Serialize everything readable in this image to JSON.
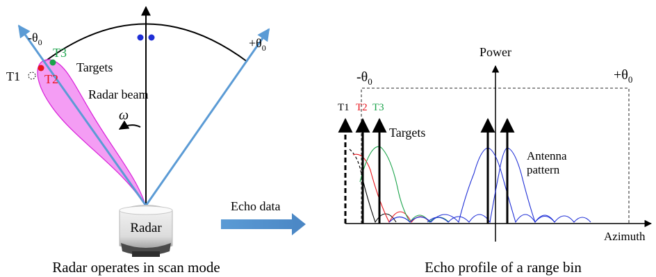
{
  "left_panel": {
    "minus_theta": "-θ",
    "minus_theta_sub": "0",
    "plus_theta": "+θ",
    "plus_theta_sub": "0",
    "t1": "T1",
    "t2": "T2",
    "t3": "T3",
    "targets": "Targets",
    "radar_beam": "Radar beam",
    "omega": "ω",
    "radar": "Radar",
    "caption": "Radar operates in scan mode"
  },
  "transfer": {
    "label": "Echo data"
  },
  "right_panel": {
    "power": "Power",
    "minus_theta": "-θ",
    "minus_theta_sub": "0",
    "plus_theta": "+θ",
    "plus_theta_sub": "0",
    "t1": "T1",
    "t2": "T2",
    "t3": "T3",
    "targets": "Targets",
    "antenna_line1": "Antenna",
    "antenna_line2": "pattern",
    "azimuth": "Azimuth",
    "caption": "Echo profile of a range bin"
  },
  "colors": {
    "beam_line": "#5b9bd5",
    "beam_fill": "#f28cf2",
    "t2_red": "#e8141c",
    "t3_green": "#1aa34a",
    "blue_dots": "#1f2fd6",
    "pattern_blue": "#1f2fd6"
  }
}
